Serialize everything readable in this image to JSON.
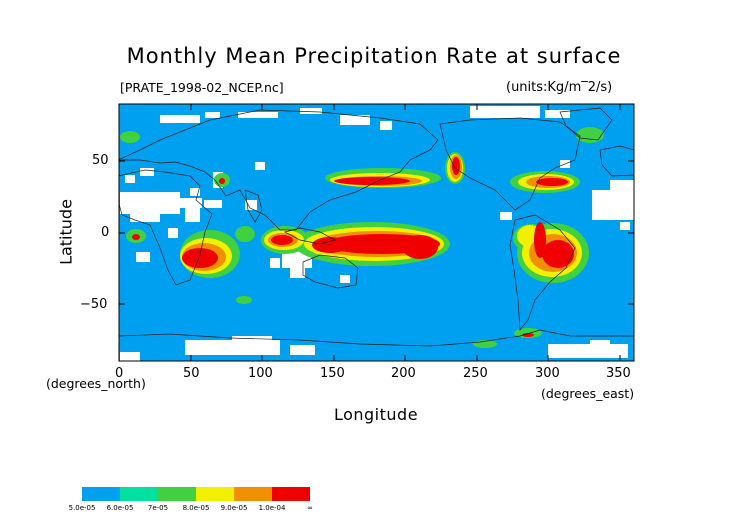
{
  "title": "Monthly Mean Precipitation Rate at surface",
  "file_label": "[PRATE_1998-02_NCEP.nc]",
  "units_label": "(units:Kg/m",
  "units_sup": "‾2/s)",
  "x_axis_label": "Longitude",
  "y_axis_label": "Latitude",
  "x_unit_label": "(degrees_east)",
  "y_unit_label": "(degrees_north)",
  "x_ticks": [
    "0",
    "50",
    "100",
    "150",
    "200",
    "250",
    "300",
    "350"
  ],
  "y_ticks": [
    "50",
    "0",
    "−50"
  ],
  "colorbar": {
    "labels": [
      "5.0e-05",
      "6.0e-05",
      "7e-05",
      "8.0e-05",
      "9.0e-05",
      "1.0e-04",
      "∞"
    ],
    "colors": [
      "#00a0f0",
      "#00e0a0",
      "#40d040",
      "#f0f000",
      "#f09000",
      "#f00000"
    ]
  },
  "colors": {
    "background_field": "#00a0f0",
    "missing": "#ffffff",
    "coast": "#202020"
  }
}
